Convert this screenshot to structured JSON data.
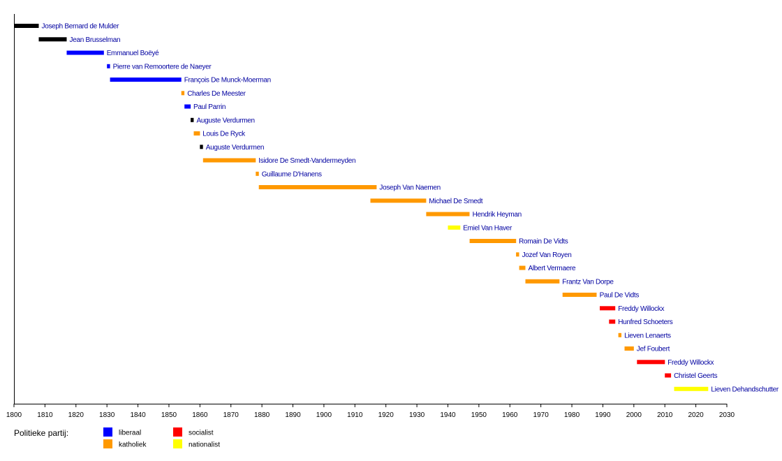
{
  "chart_data": {
    "type": "timeline",
    "title": "",
    "xlabel": "",
    "ylabel": "",
    "xlim": [
      1800,
      2030
    ],
    "x_ticks": [
      1800,
      1810,
      1820,
      1830,
      1840,
      1850,
      1860,
      1870,
      1880,
      1890,
      1900,
      1910,
      1920,
      1930,
      1940,
      1950,
      1960,
      1970,
      1980,
      1990,
      2000,
      2010,
      2020,
      2030
    ],
    "grid": false,
    "legend": {
      "title": "Politieke partij:",
      "placement": "bottom-left",
      "entries": [
        {
          "key": "liberaal",
          "label": "liberaal",
          "color": "#0000ff"
        },
        {
          "key": "katholiek",
          "label": "katholiek",
          "color": "#ff9900"
        },
        {
          "key": "socialist",
          "label": "socialist",
          "color": "#ff0000"
        },
        {
          "key": "nationalist",
          "label": "nationalist",
          "color": "#ffff00"
        }
      ]
    },
    "party_colors": {
      "none": "#000000",
      "liberaal": "#0000ff",
      "katholiek": "#ff9900",
      "socialist": "#ff0000",
      "nationalist": "#ffff00"
    },
    "series": [
      {
        "name": "Joseph Bernard de Mulder",
        "start": 1800,
        "end": 1808,
        "party": "none"
      },
      {
        "name": "Jean Brusselman",
        "start": 1808,
        "end": 1817,
        "party": "none"
      },
      {
        "name": "Emmanuel Boëyé",
        "start": 1817,
        "end": 1829,
        "party": "liberaal"
      },
      {
        "name": "Pierre van Remoortere de Naeyer",
        "start": 1830,
        "end": 1831,
        "party": "liberaal"
      },
      {
        "name": "François De Munck-Moerman",
        "start": 1831,
        "end": 1854,
        "party": "liberaal"
      },
      {
        "name": "Charles De Meester",
        "start": 1854,
        "end": 1855,
        "party": "katholiek"
      },
      {
        "name": "Paul Parrin",
        "start": 1855,
        "end": 1857,
        "party": "liberaal"
      },
      {
        "name": "Auguste Verdurmen",
        "start": 1857,
        "end": 1858,
        "party": "none"
      },
      {
        "name": "Louis De Ryck",
        "start": 1858,
        "end": 1860,
        "party": "katholiek"
      },
      {
        "name": "Auguste Verdurmen",
        "start": 1860,
        "end": 1861,
        "party": "none"
      },
      {
        "name": "Isidore De Smedt-Vandermeyden",
        "start": 1861,
        "end": 1878,
        "party": "katholiek"
      },
      {
        "name": "Guillaume D'Hanens",
        "start": 1878,
        "end": 1879,
        "party": "katholiek"
      },
      {
        "name": "Joseph Van Naemen",
        "start": 1879,
        "end": 1917,
        "party": "katholiek"
      },
      {
        "name": "Michael De Smedt",
        "start": 1915,
        "end": 1933,
        "party": "katholiek"
      },
      {
        "name": "Hendrik Heyman",
        "start": 1933,
        "end": 1947,
        "party": "katholiek"
      },
      {
        "name": "Emiel Van Haver",
        "start": 1940,
        "end": 1944,
        "party": "nationalist"
      },
      {
        "name": "Romain De Vidts",
        "start": 1947,
        "end": 1962,
        "party": "katholiek"
      },
      {
        "name": "Jozef Van Royen",
        "start": 1962,
        "end": 1963,
        "party": "katholiek"
      },
      {
        "name": "Albert Vermaere",
        "start": 1963,
        "end": 1965,
        "party": "katholiek"
      },
      {
        "name": "Frantz Van Dorpe",
        "start": 1965,
        "end": 1976,
        "party": "katholiek"
      },
      {
        "name": "Paul De Vidts",
        "start": 1977,
        "end": 1988,
        "party": "katholiek"
      },
      {
        "name": "Freddy Willockx",
        "start": 1989,
        "end": 1994,
        "party": "socialist"
      },
      {
        "name": "Hunfred Schoeters",
        "start": 1992,
        "end": 1994,
        "party": "socialist"
      },
      {
        "name": "Lieven Lenaerts",
        "start": 1995,
        "end": 1996,
        "party": "katholiek"
      },
      {
        "name": "Jef Foubert",
        "start": 1997,
        "end": 2000,
        "party": "katholiek"
      },
      {
        "name": "Freddy Willockx",
        "start": 2001,
        "end": 2010,
        "party": "socialist"
      },
      {
        "name": "Christel Geerts",
        "start": 2010,
        "end": 2012,
        "party": "socialist"
      },
      {
        "name": "Lieven Dehandschutter",
        "start": 2013,
        "end": 2024,
        "party": "nationalist"
      }
    ]
  }
}
